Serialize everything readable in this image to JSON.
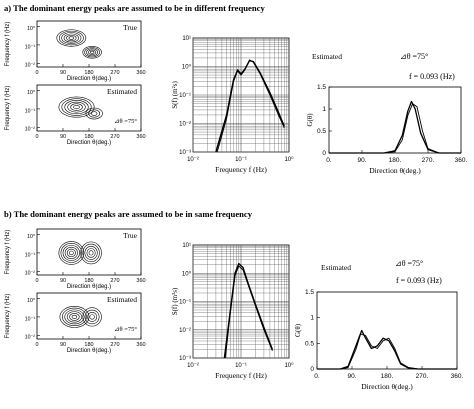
{
  "sections": [
    {
      "title": "a) The dominant energy peaks are assumed to be in different frequency",
      "panels": {
        "top_label": "True",
        "bottom_label": "Estimated",
        "theta_annot": "⊿θ =75°",
        "ylabel": "Frequency f (Hz)",
        "xlabel": "Direction θ(deg.)",
        "xticks": [
          "0",
          "90",
          "180",
          "270",
          "360"
        ],
        "yticks": [
          "10⁰",
          "10⁻¹",
          "10⁻²"
        ]
      }
    },
    {
      "title": "b) The dominant energy peaks are assumed to be in same frequency",
      "panels": {
        "top_label": "True",
        "bottom_label": "Estimated",
        "theta_annot": "⊿θ =75°",
        "ylabel": "Frequency f (Hz)",
        "xlabel": "Direction θ(deg.)",
        "xticks": [
          "0",
          "90",
          "180",
          "270",
          "360"
        ],
        "yticks": [
          "10⁰",
          "10⁻¹",
          "10⁻²"
        ]
      }
    }
  ],
  "chart_data": [
    {
      "type": "line",
      "panel": "a-spectrum",
      "ylabel": "S(f) (m²s)",
      "xlabel": "Frequency  f (Hz)",
      "xscale": "log",
      "yscale": "log",
      "xlim": [
        0.01,
        1
      ],
      "ylim": [
        0.001,
        10
      ],
      "xticks": [
        "10⁻²",
        "10⁻¹",
        "10⁰"
      ],
      "yticks": [
        "10¹",
        "10⁰",
        "10⁻¹",
        "10⁻²",
        "10⁻³"
      ],
      "grid": true,
      "series": [
        {
          "x": [
            0.03,
            0.05,
            0.07,
            0.085,
            0.1,
            0.12,
            0.15,
            0.18,
            0.25,
            0.4,
            0.6,
            0.8
          ],
          "y": [
            0.001,
            0.02,
            0.35,
            0.75,
            0.55,
            0.8,
            1.6,
            1.5,
            0.6,
            0.12,
            0.025,
            0.008
          ]
        },
        {
          "x": [
            0.032,
            0.05,
            0.07,
            0.085,
            0.1,
            0.12,
            0.15,
            0.18,
            0.25,
            0.4,
            0.6,
            0.8
          ],
          "y": [
            0.001,
            0.015,
            0.3,
            0.7,
            0.5,
            0.75,
            1.7,
            1.4,
            0.55,
            0.1,
            0.02,
            0.007
          ]
        }
      ]
    },
    {
      "type": "line",
      "panel": "a-directional",
      "legend_text": "Estimated",
      "theta_annot": "⊿θ =75°",
      "freq_annot": "f = 0.093  (Hz)",
      "ylabel": "G(θ)",
      "xlabel": "Direction θ(deg.)",
      "xlim": [
        0,
        360
      ],
      "ylim": [
        0,
        1.5
      ],
      "xticks": [
        "0.",
        "90.",
        "180.",
        "270.",
        "360."
      ],
      "yticks": [
        "0",
        "0.5",
        "1",
        "1.5"
      ],
      "series": [
        {
          "x": [
            0,
            150,
            180,
            200,
            215,
            225,
            235,
            250,
            270,
            300,
            360
          ],
          "y": [
            0,
            0,
            0.05,
            0.4,
            0.95,
            1.17,
            1.0,
            0.45,
            0.08,
            0,
            0
          ]
        },
        {
          "x": [
            0,
            150,
            180,
            200,
            215,
            228,
            240,
            255,
            270,
            300,
            360
          ],
          "y": [
            0,
            0,
            0.03,
            0.3,
            0.85,
            1.12,
            1.05,
            0.5,
            0.1,
            0,
            0
          ]
        }
      ]
    },
    {
      "type": "line",
      "panel": "b-spectrum",
      "ylabel": "S(f) (m²s)",
      "xlabel": "Frequency  f (Hz)",
      "xscale": "log",
      "yscale": "log",
      "xlim": [
        0.01,
        1
      ],
      "ylim": [
        0.001,
        10
      ],
      "xticks": [
        "10⁻²",
        "10⁻¹",
        "10⁰"
      ],
      "yticks": [
        "10¹",
        "10⁰",
        "10⁻¹",
        "10⁻²",
        "10⁻³"
      ],
      "grid": true,
      "series": [
        {
          "x": [
            0.045,
            0.06,
            0.075,
            0.09,
            0.11,
            0.14,
            0.2,
            0.3,
            0.45
          ],
          "y": [
            0.001,
            0.05,
            1.0,
            2.2,
            1.6,
            0.45,
            0.08,
            0.012,
            0.002
          ]
        },
        {
          "x": [
            0.047,
            0.06,
            0.075,
            0.09,
            0.11,
            0.14,
            0.2,
            0.3,
            0.45
          ],
          "y": [
            0.001,
            0.04,
            0.8,
            1.8,
            1.3,
            0.4,
            0.07,
            0.01,
            0.0018
          ]
        }
      ]
    },
    {
      "type": "line",
      "panel": "b-directional",
      "legend_text": "Estimated",
      "theta_annot": "⊿θ =75°",
      "freq_annot": "f = 0.093  (Hz)",
      "ylabel": "G(θ)",
      "xlabel": "Direction θ(deg.)",
      "xlim": [
        0,
        360
      ],
      "ylim": [
        0,
        1.5
      ],
      "xticks": [
        "0.",
        "90.",
        "180.",
        "270.",
        "360."
      ],
      "yticks": [
        "0",
        "0.5",
        "1",
        "1.5"
      ],
      "series": [
        {
          "x": [
            0,
            60,
            80,
            100,
            115,
            125,
            140,
            155,
            170,
            185,
            200,
            215,
            235,
            260,
            360
          ],
          "y": [
            0,
            0,
            0.05,
            0.45,
            0.75,
            0.6,
            0.4,
            0.45,
            0.6,
            0.55,
            0.35,
            0.1,
            0.02,
            0,
            0
          ]
        },
        {
          "x": [
            0,
            60,
            80,
            100,
            112,
            125,
            140,
            155,
            170,
            185,
            200,
            215,
            235,
            260,
            360
          ],
          "y": [
            0,
            0,
            0.03,
            0.38,
            0.68,
            0.65,
            0.45,
            0.4,
            0.55,
            0.6,
            0.4,
            0.12,
            0.03,
            0,
            0
          ]
        }
      ]
    }
  ]
}
